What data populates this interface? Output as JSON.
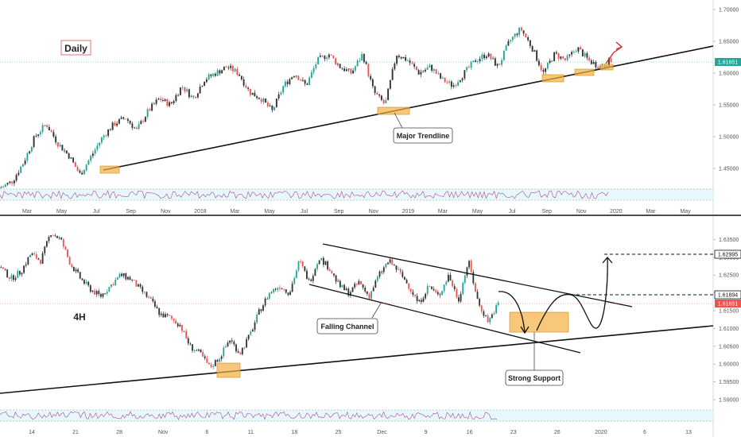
{
  "panels": {
    "daily": {
      "title": "Daily",
      "y_ticks": [
        "1.70000",
        "1.65000",
        "1.60000",
        "1.55000",
        "1.50000",
        "1.45000"
      ],
      "x_ticks": [
        "Mar",
        "May",
        "Jul",
        "Sep",
        "Nov",
        "2018",
        "Mar",
        "May",
        "Jul",
        "Sep",
        "Nov",
        "2019",
        "Mar",
        "May",
        "Jul",
        "Sep",
        "Nov",
        "2020",
        "Mar",
        "May"
      ],
      "price_label": "1.61651",
      "annotations": [
        "Major Trendline"
      ]
    },
    "h4": {
      "title": "4H",
      "y_ticks": [
        "1.63500",
        "1.63000",
        "1.62500",
        "1.62000",
        "1.61500",
        "1.61000",
        "1.60500",
        "1.60000",
        "1.59500",
        "1.59000"
      ],
      "x_ticks": [
        "14",
        "21",
        "28",
        "Nov",
        "6",
        "11",
        "18",
        "25",
        "Dec",
        "9",
        "16",
        "23",
        "26",
        "2020",
        "6",
        "13"
      ],
      "level_labels": [
        "1.62995",
        "1.61894"
      ],
      "price_label": "1.61651",
      "annotations": [
        "Falling Channel",
        "Strong Support"
      ]
    }
  },
  "colors": {
    "bull": "#26a69a",
    "bear": "#ef5350",
    "candle_dark": "#333333",
    "support_box": "#f5b041",
    "label_green": "#26a69a",
    "label_red": "#ef5350",
    "rsi_line": "#b04a8a",
    "rsi_band": "#e8f7fb"
  },
  "chart_data": [
    {
      "type": "candlestick",
      "title": "Daily",
      "ylim": [
        1.42,
        1.71
      ],
      "y_ticks": [
        1.45,
        1.5,
        1.55,
        1.6,
        1.65,
        1.7
      ],
      "close_path": [
        1.42,
        1.43,
        1.46,
        1.5,
        1.52,
        1.49,
        1.47,
        1.44,
        1.47,
        1.5,
        1.52,
        1.53,
        1.51,
        1.54,
        1.56,
        1.55,
        1.58,
        1.56,
        1.59,
        1.6,
        1.61,
        1.6,
        1.57,
        1.56,
        1.54,
        1.58,
        1.6,
        1.58,
        1.62,
        1.63,
        1.61,
        1.6,
        1.63,
        1.57,
        1.55,
        1.63,
        1.62,
        1.6,
        1.61,
        1.59,
        1.58,
        1.6,
        1.62,
        1.63,
        1.61,
        1.65,
        1.67,
        1.64,
        1.6,
        1.63,
        1.62,
        1.64,
        1.62,
        1.61,
        1.62
      ],
      "last_price": 1.61651,
      "trendline": {
        "from": [
          1.446,
          "Jul 2017"
        ],
        "to": [
          1.64,
          "May 2020"
        ]
      },
      "annotations": [
        "Major Trendline"
      ]
    },
    {
      "type": "candlestick",
      "title": "4H",
      "ylim": [
        1.588,
        1.638
      ],
      "y_ticks": [
        1.59,
        1.595,
        1.6,
        1.605,
        1.61,
        1.615,
        1.62,
        1.625,
        1.63,
        1.635
      ],
      "close_path": [
        1.627,
        1.624,
        1.626,
        1.631,
        1.629,
        1.637,
        1.635,
        1.628,
        1.624,
        1.621,
        1.619,
        1.622,
        1.625,
        1.624,
        1.621,
        1.618,
        1.614,
        1.613,
        1.611,
        1.605,
        1.603,
        1.599,
        1.602,
        1.607,
        1.603,
        1.608,
        1.615,
        1.62,
        1.622,
        1.62,
        1.629,
        1.623,
        1.63,
        1.627,
        1.622,
        1.62,
        1.623,
        1.619,
        1.625,
        1.629,
        1.626,
        1.622,
        1.617,
        1.622,
        1.619,
        1.625,
        1.618,
        1.629,
        1.617,
        1.612,
        1.617
      ],
      "last_price": 1.61651,
      "levels": [
        1.62995,
        1.61894
      ],
      "annotations": [
        "Falling Channel",
        "Strong Support"
      ]
    }
  ]
}
